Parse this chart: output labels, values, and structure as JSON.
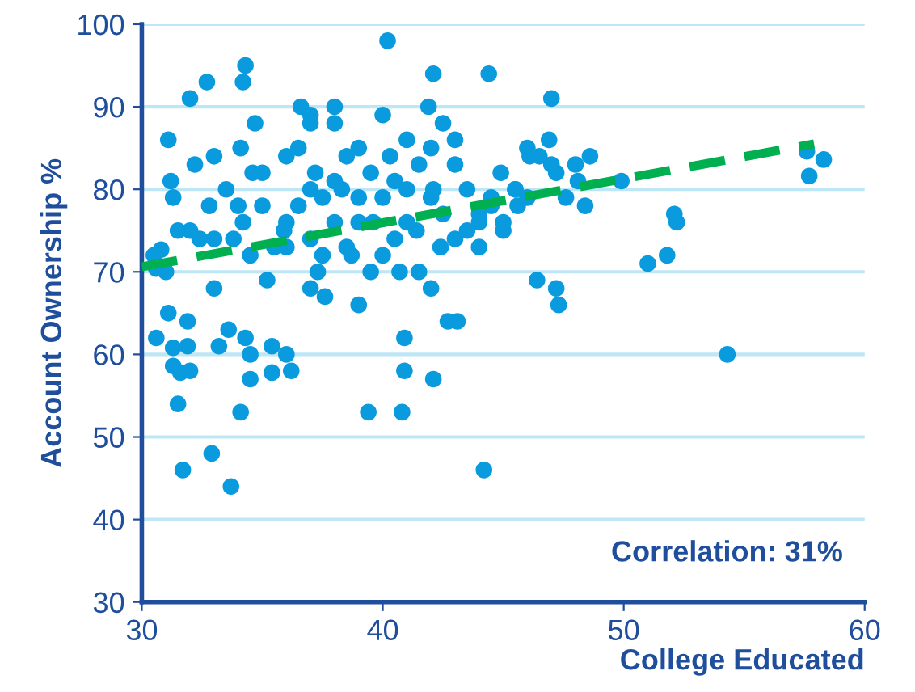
{
  "chart_data": {
    "type": "scatter",
    "xlabel": "College Educated",
    "ylabel": "Account Ownership %",
    "annotations": [
      "Correlation: 31%"
    ],
    "xlim": [
      30,
      60
    ],
    "xticks": [
      30,
      40,
      50,
      60
    ],
    "ylim": [
      30,
      100
    ],
    "yticks": [
      30,
      40,
      50,
      60,
      70,
      80,
      90,
      100
    ],
    "grid": "y",
    "marker": "circle",
    "series": [
      {
        "color": "#0a9ade",
        "x": [
          30.6,
          30.8,
          31.1,
          31.2,
          31.3,
          31.5,
          31.1,
          30.6,
          31.3,
          31.3,
          31.6,
          31.5,
          31.7,
          31.9,
          32.0,
          31.9,
          32.0,
          32.2,
          32.4,
          32.7,
          32.8,
          33.0,
          33.0,
          33.2,
          32.9,
          33.7,
          33.6,
          33.8,
          34.2,
          34.3,
          34.1,
          34.2,
          34.3,
          34.1,
          34.5,
          34.5,
          34.6,
          34.7,
          35.2,
          35.4,
          36.0,
          35.4,
          35.9,
          36.2,
          36.6,
          37.0,
          37.3,
          37.0,
          37.6,
          38.0,
          38.3,
          38.7,
          39.0,
          39.4,
          39.6,
          40.2,
          40.3,
          40.7,
          40.9,
          40.8,
          40.9,
          41.4,
          41.9,
          42.1,
          42.1,
          42.4,
          43.1,
          42.7,
          42.1,
          44.2,
          44.4,
          44.9,
          45.6,
          46.1,
          46.9,
          47.2,
          47.0,
          47.6,
          48.1,
          48.6,
          48.4,
          46.4,
          47.2,
          47.3,
          49.9,
          51.0,
          51.8,
          52.1,
          52.2,
          54.3,
          57.6,
          58.3,
          57.7,
          36.0,
          36.5,
          37.0,
          37.2,
          37.5,
          38.0,
          38.5,
          39.0,
          39.5,
          40.0,
          40.5,
          41.0,
          41.5,
          42.0,
          42.5,
          43.0,
          43.5,
          44.0,
          44.5,
          45.0,
          45.5,
          46.0,
          35.0,
          35.5,
          36.0,
          36.5,
          37.0,
          37.5,
          38.0,
          38.5,
          39.0,
          39.5,
          40.0,
          40.5,
          41.0,
          41.5,
          42.0,
          42.5,
          43.0,
          43.5,
          44.0,
          44.5,
          45.0,
          45.5,
          46.0,
          33.5,
          34.0,
          34.5,
          35.0,
          33.0,
          32.0,
          31.0,
          30.5,
          36.0,
          37.0,
          38.0,
          39.0,
          40.0,
          41.0,
          42.0,
          43.0,
          44.0,
          47.0,
          48.0,
          46.5
        ],
        "values": [
          70.4,
          72.7,
          86,
          81,
          79,
          75,
          65,
          62,
          60.8,
          58.6,
          57.8,
          54,
          46,
          64,
          58,
          61,
          91,
          83,
          74,
          93,
          78,
          84,
          68,
          61,
          48,
          44,
          63,
          74,
          93,
          95,
          85,
          76,
          62,
          53,
          57,
          60,
          82,
          88,
          69,
          61,
          60,
          57.8,
          75,
          58,
          90,
          89,
          70,
          68,
          67,
          88,
          80,
          72,
          66,
          53,
          76,
          98,
          84,
          70,
          62,
          53,
          58,
          75,
          90,
          80,
          94,
          73,
          64,
          64,
          57,
          46,
          94,
          82,
          78,
          84,
          86,
          82,
          91,
          79,
          81,
          84,
          78,
          69,
          68,
          66,
          81,
          71,
          72,
          77,
          76,
          60,
          84.6,
          83.6,
          81.6,
          84,
          85,
          80,
          82,
          79,
          81,
          84,
          85,
          82,
          79,
          81,
          80,
          83,
          85,
          88,
          86,
          80,
          77,
          78,
          75,
          80,
          85,
          78,
          73,
          76,
          78,
          74,
          72,
          76,
          73,
          79,
          70,
          72,
          74,
          76,
          70,
          68,
          77,
          74,
          75,
          76,
          79,
          76,
          80,
          79,
          80,
          78,
          72,
          82,
          74,
          75,
          70,
          72,
          73,
          88,
          90,
          76,
          89,
          86,
          79,
          83,
          73,
          83,
          83,
          84
        ]
      },
      {
        "type": "line",
        "color": "#00b050",
        "line_style": "dashed",
        "marker": "none",
        "x": [
          30,
          57.9
        ],
        "values": [
          70.6,
          85.5
        ]
      }
    ]
  }
}
